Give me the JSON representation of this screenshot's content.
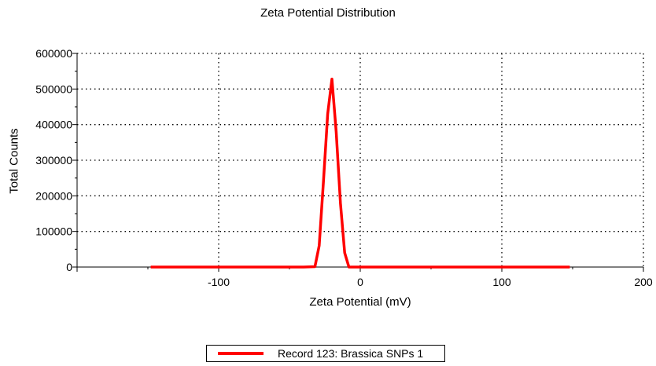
{
  "chart_data": {
    "type": "line",
    "title": "Zeta Potential Distribution",
    "xlabel": "Zeta Potential (mV)",
    "ylabel": "Total Counts",
    "xlim": [
      -200,
      200
    ],
    "ylim": [
      0,
      600000
    ],
    "xticks": [
      -200,
      -100,
      0,
      100,
      200
    ],
    "xtick_labels": [
      "",
      "-100",
      "0",
      "100",
      "200"
    ],
    "yticks": [
      0,
      100000,
      200000,
      300000,
      400000,
      500000,
      600000
    ],
    "ytick_labels": [
      "0",
      "100000",
      "200000",
      "300000",
      "400000",
      "500000",
      "600000"
    ],
    "grid": true,
    "legend_position": "bottom",
    "series": [
      {
        "name": "Record 123: Brassica SNPs 1",
        "color": "#ff0000",
        "x": [
          -148,
          -40,
          -32,
          -29,
          -26,
          -23,
          -20,
          -17,
          -14,
          -11,
          -8,
          148
        ],
        "y": [
          0,
          0,
          1000,
          60000,
          240000,
          430000,
          528000,
          380000,
          180000,
          40000,
          0,
          0
        ]
      }
    ]
  }
}
